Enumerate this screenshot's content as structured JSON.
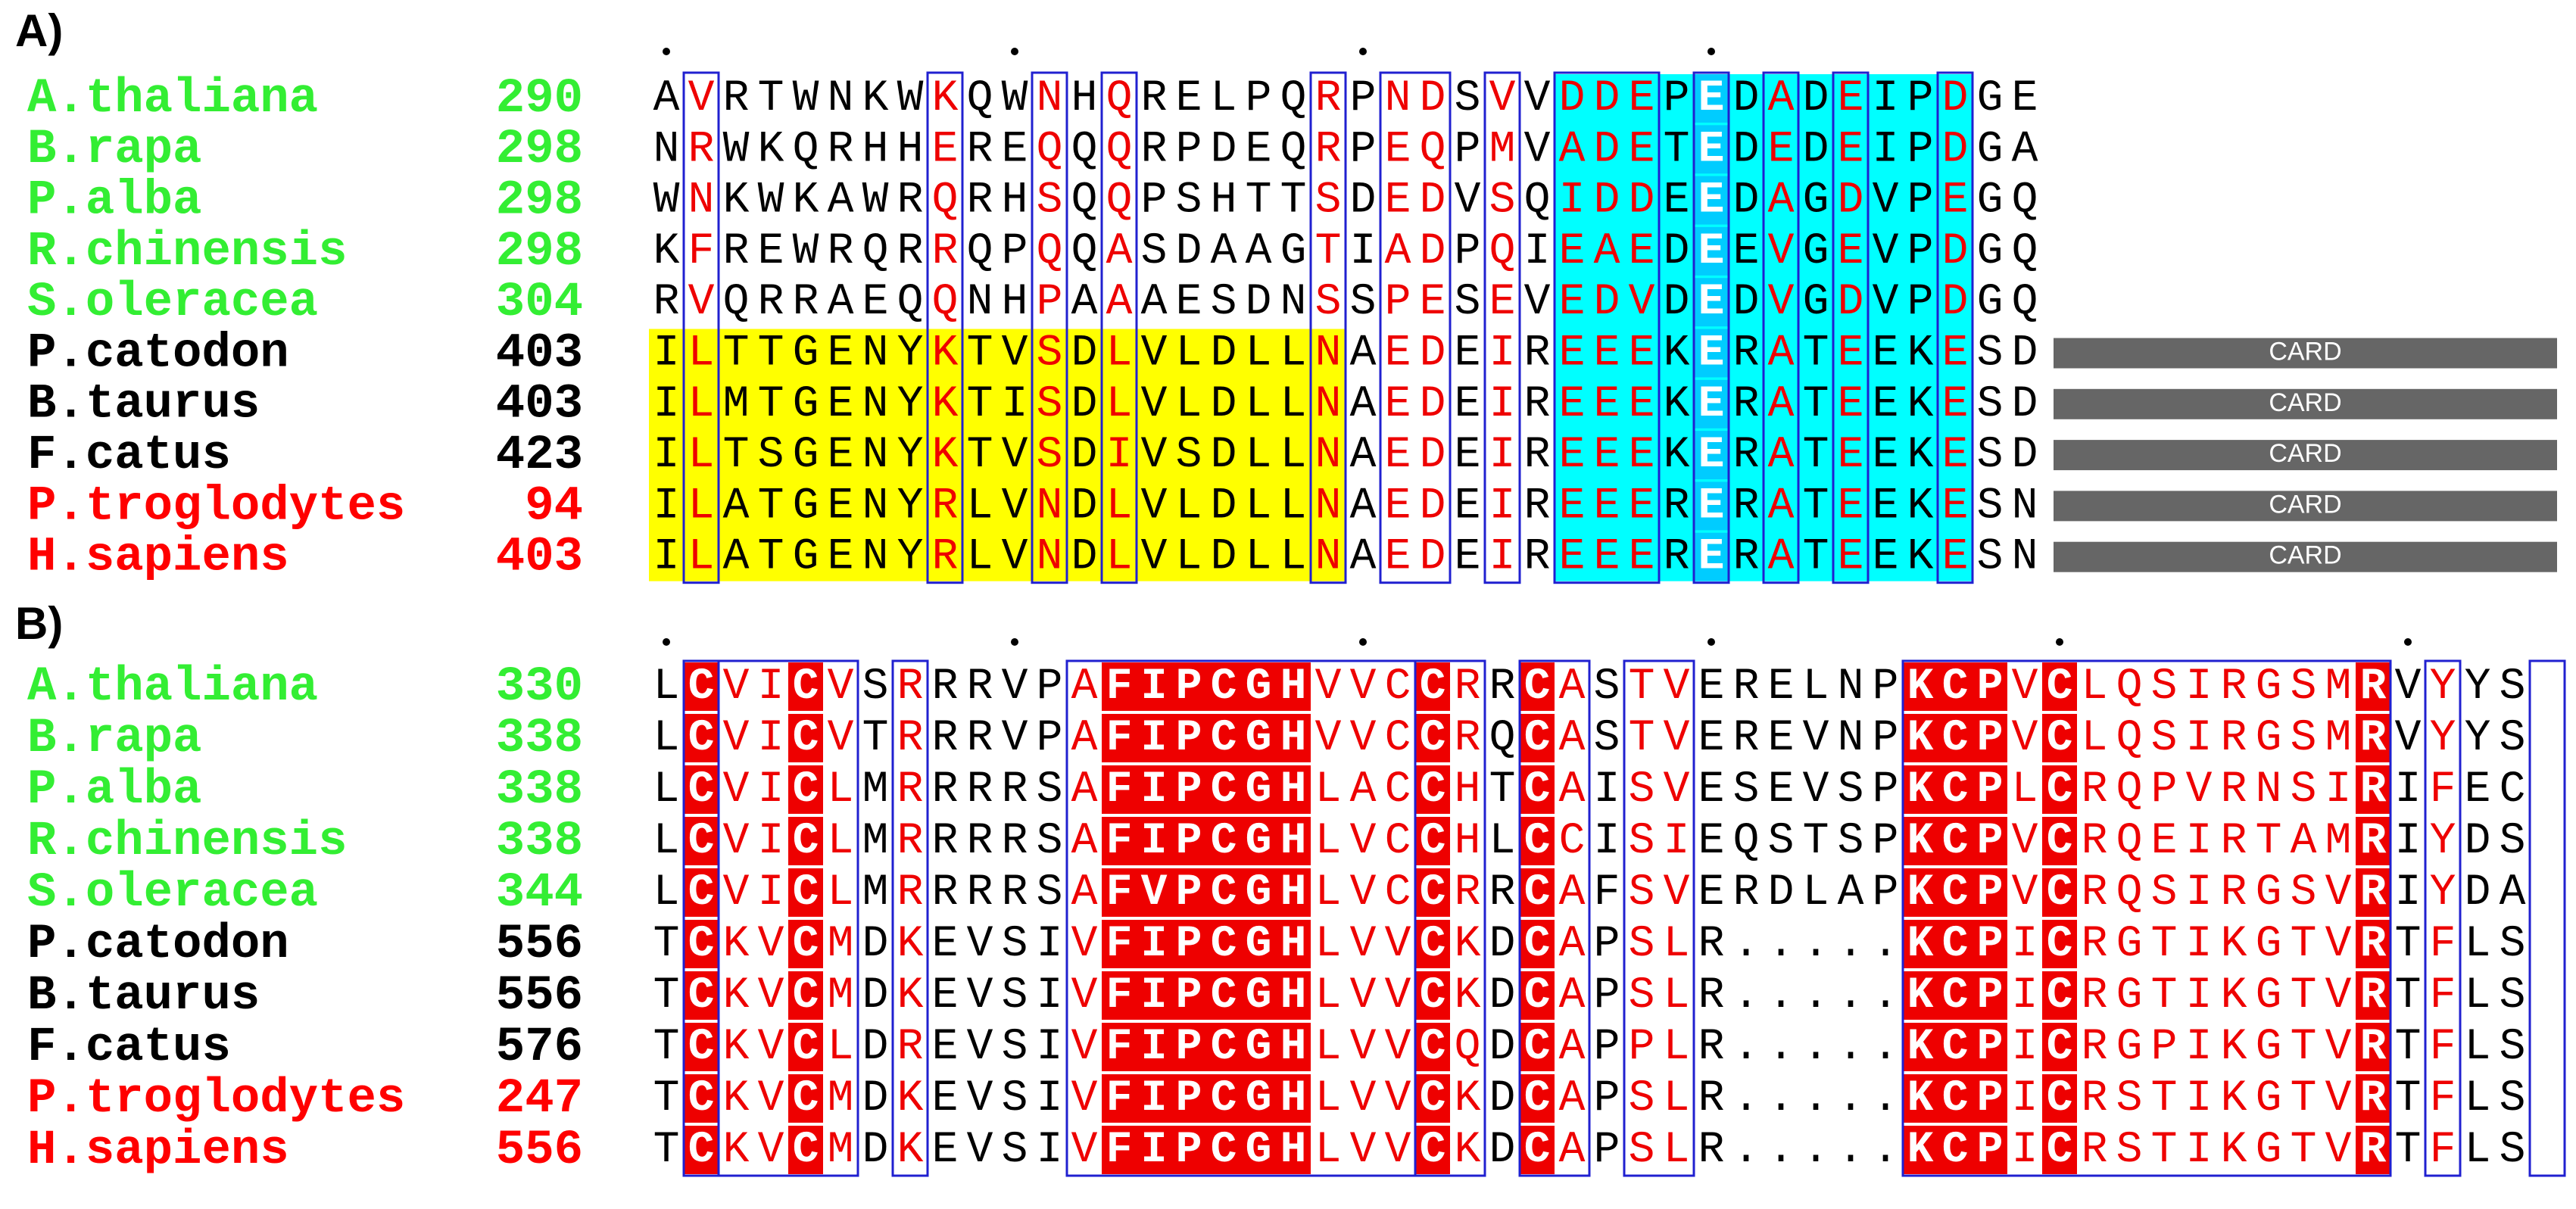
{
  "panels": [
    {
      "label": "A)",
      "rows": [
        {
          "species": "A.thaliana",
          "color": "#33ee33",
          "start": 290,
          "sequence": "AVRTWNKWKQWNHQRELPQRPNDSVVDDEPEDADEIPDGE"
        },
        {
          "species": "B.rapa",
          "color": "#33ee33",
          "start": 298,
          "sequence": "NRWKQRHHEREQQQRPDEQRPEQPMVADETEDEDEIPDGA"
        },
        {
          "species": "P.alba",
          "color": "#33ee33",
          "start": 298,
          "sequence": "WNKWKAWRQRHSQQPSHTTSDEDVSQIDDEEDAGDVPEGQ"
        },
        {
          "species": "R.chinensis",
          "color": "#33ee33",
          "start": 298,
          "sequence": "KFREWRQRRQPQQASDAAGTIADPQIEAEDEEVGEVPDGQ"
        },
        {
          "species": "S.oleracea",
          "color": "#33ee33",
          "start": 304,
          "sequence": "RVQRRAEQQNHPAAAESDNSSPESEVEDVDEDVGDVPDGQ"
        },
        {
          "species": "P.catodon",
          "color": "#000000",
          "start": 403,
          "sequence": "ILTTGENYKTVSDLVLDLLNAEDEIREEEKERATEEKESD",
          "domain": "CARD"
        },
        {
          "species": "B.taurus",
          "color": "#000000",
          "start": 403,
          "sequence": "ILMTGENYKTISDLVLDLLNAEDEIREEEKERATEEKESD",
          "domain": "CARD"
        },
        {
          "species": "F.catus",
          "color": "#000000",
          "start": 423,
          "sequence": "ILTSGENYKTVSDIVSDLLNAEDEIREEEKERATEEKESD",
          "domain": "CARD"
        },
        {
          "species": "P.troglodytes",
          "color": "#ff0000",
          "start": 94,
          "sequence": "ILATGENYRLVNDLVLDLLNAEDEIREEERERATEEKESN",
          "domain": "CARD"
        },
        {
          "species": "H.sapiens",
          "color": "#ff0000",
          "start": 403,
          "sequence": "ILATGENYRLVNDLVLDLLNAEDEIREEERERATEEKESN",
          "domain": "CARD"
        }
      ]
    },
    {
      "label": "B)",
      "rows": [
        {
          "species": "A.thaliana",
          "color": "#33ee33",
          "start": 330,
          "sequence": "LCVICVSRRRVPAFIPCGHVVCCRRCASTVERELNPKCPVCLQSIRGSMRVYYS"
        },
        {
          "species": "B.rapa",
          "color": "#33ee33",
          "start": 338,
          "sequence": "LCVICVTRRRVPAFIPCGHVVCCRQCASTVEREVNPKCPVCLQSIRGSMRVYYS"
        },
        {
          "species": "P.alba",
          "color": "#33ee33",
          "start": 338,
          "sequence": "LCVICLMRRRRSAFIPCGHLACCHTCAISVESEVSPKCPLCRQPVRNSIRIFEC"
        },
        {
          "species": "R.chinensis",
          "color": "#33ee33",
          "start": 338,
          "sequence": "LCVICLMRRRRSAFIPCGHLVCCHLCCISIEQSTSPKCPVCRQEIRTAMRIYDS"
        },
        {
          "species": "S.oleracea",
          "color": "#33ee33",
          "start": 344,
          "sequence": "LCVICLMRRRRSAFVPCGHLVCCRRCAFSVERDLAPKCPVCRQSIRGSVRIYDA"
        },
        {
          "species": "P.catodon",
          "color": "#000000",
          "start": 556,
          "sequence": "TCKVCMDKEVSIVFIPCGHLVVCKDCAPSLR.....KCPICRGTIKGTVRTFLS"
        },
        {
          "species": "B.taurus",
          "color": "#000000",
          "start": 556,
          "sequence": "TCKVCMDKEVSIVFIPCGHLVVCKDCAPSLR.....KCPICRGTIKGTVRTFLS"
        },
        {
          "species": "F.catus",
          "color": "#000000",
          "start": 576,
          "sequence": "TCKVCLDREVSIVFIPCGHLVVCQDCAPPLR.....KCPICRGPIKGTVRTFLS"
        },
        {
          "species": "P.troglodytes",
          "color": "#ff0000",
          "start": 247,
          "sequence": "TCKVCMDKEVSIVFIPCGHLVVCKDCAPSLR.....KCPICRSTIKGTVRTFLS"
        },
        {
          "species": "H.sapiens",
          "color": "#ff0000",
          "start": 556,
          "sequence": "TCKVCMDKEVSIVFIPCGHLVVCKDCAPSLR.....KCPICRSTIKGTVRTFLS"
        }
      ]
    }
  ]
}
